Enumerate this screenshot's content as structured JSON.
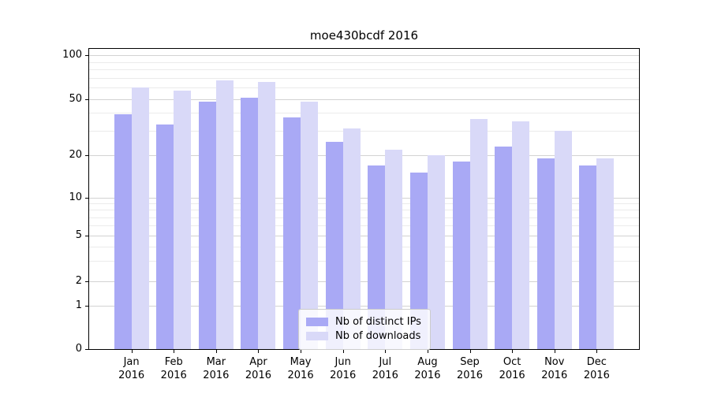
{
  "title": "moe430bcdf 2016",
  "chart_data": {
    "type": "bar",
    "title": "moe430bcdf 2016",
    "categories": [
      "Jan",
      "Feb",
      "Mar",
      "Apr",
      "May",
      "Jun",
      "Jul",
      "Aug",
      "Sep",
      "Oct",
      "Nov",
      "Dec"
    ],
    "category_year": "2016",
    "series": [
      {
        "name": "Nb of distinct IPs",
        "color": "#a9a9f5",
        "values": [
          39,
          33,
          48,
          51,
          37,
          25,
          17,
          15,
          18,
          23,
          19,
          17
        ]
      },
      {
        "name": "Nb of downloads",
        "color": "#d9d9f8",
        "values": [
          60,
          57,
          67,
          66,
          48,
          31,
          22,
          20,
          36,
          35,
          30,
          19
        ]
      }
    ],
    "xlabel": "",
    "ylabel": "",
    "yscale": "symlog",
    "yticks": [
      0,
      1,
      2,
      5,
      10,
      20,
      50,
      100
    ],
    "yticks_minor": [
      3,
      4,
      6,
      7,
      8,
      9,
      30,
      40,
      60,
      70,
      80,
      90
    ],
    "ylim": [
      0,
      110
    ],
    "grid": true,
    "legend_position": "lower center",
    "colors": {
      "bar_dark": "#a9a9f5",
      "bar_light": "#d9d9f8",
      "grid_major": "#d2d2d2",
      "grid_minor": "#ebebeb",
      "axis": "#000000",
      "background": "#ffffff"
    }
  }
}
